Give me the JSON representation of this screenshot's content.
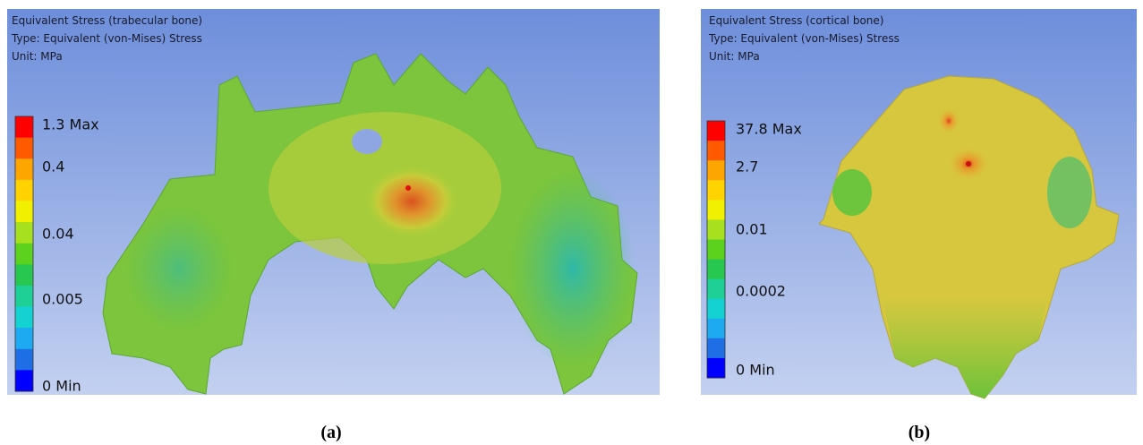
{
  "panels": [
    {
      "title": "Equivalent Stress (trabecular bone)",
      "type": "Type: Equivalent (von-Mises) Stress",
      "unit": "Unit: MPa",
      "legend": [
        "1.3 Max",
        "0.4",
        "0.04",
        "0.005",
        "0 Min"
      ],
      "caption": "(a)"
    },
    {
      "title": "Equivalent Stress (cortical bone)",
      "type": "Type: Equivalent (von-Mises) Stress",
      "unit": "Unit: MPa",
      "legend": [
        "37.8 Max",
        "2.7",
        "0.01",
        "0.0002",
        "0 Min"
      ],
      "caption": "(b)"
    }
  ]
}
